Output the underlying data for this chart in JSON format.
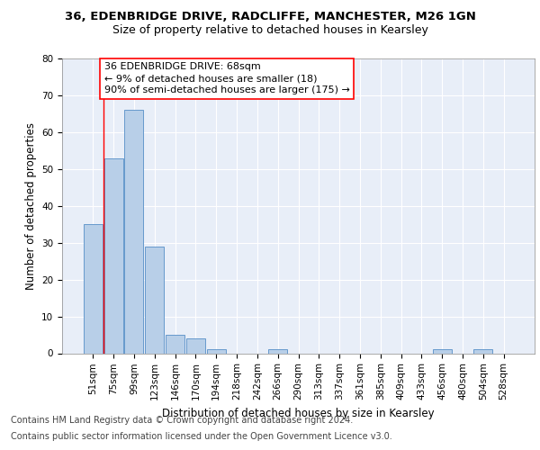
{
  "title1": "36, EDENBRIDGE DRIVE, RADCLIFFE, MANCHESTER, M26 1GN",
  "title2": "Size of property relative to detached houses in Kearsley",
  "xlabel": "Distribution of detached houses by size in Kearsley",
  "ylabel": "Number of detached properties",
  "bar_labels": [
    "51sqm",
    "75sqm",
    "99sqm",
    "123sqm",
    "146sqm",
    "170sqm",
    "194sqm",
    "218sqm",
    "242sqm",
    "266sqm",
    "290sqm",
    "313sqm",
    "337sqm",
    "361sqm",
    "385sqm",
    "409sqm",
    "433sqm",
    "456sqm",
    "480sqm",
    "504sqm",
    "528sqm"
  ],
  "bar_values": [
    35,
    53,
    66,
    29,
    5,
    4,
    1,
    0,
    0,
    1,
    0,
    0,
    0,
    0,
    0,
    0,
    0,
    1,
    0,
    1,
    0
  ],
  "bar_color": "#b8cfe8",
  "bar_edge_color": "#6699cc",
  "ylim": [
    0,
    80
  ],
  "yticks": [
    0,
    10,
    20,
    30,
    40,
    50,
    60,
    70,
    80
  ],
  "annotation_line1": "36 EDENBRIDGE DRIVE: 68sqm",
  "annotation_line2": "← 9% of detached houses are smaller (18)",
  "annotation_line3": "90% of semi-detached houses are larger (175) →",
  "footer1": "Contains HM Land Registry data © Crown copyright and database right 2024.",
  "footer2": "Contains public sector information licensed under the Open Government Licence v3.0.",
  "background_color": "#e8eef8",
  "grid_color": "#ffffff",
  "title1_fontsize": 9.5,
  "title2_fontsize": 9,
  "axis_label_fontsize": 8.5,
  "tick_fontsize": 7.5,
  "annotation_fontsize": 8,
  "footer_fontsize": 7
}
